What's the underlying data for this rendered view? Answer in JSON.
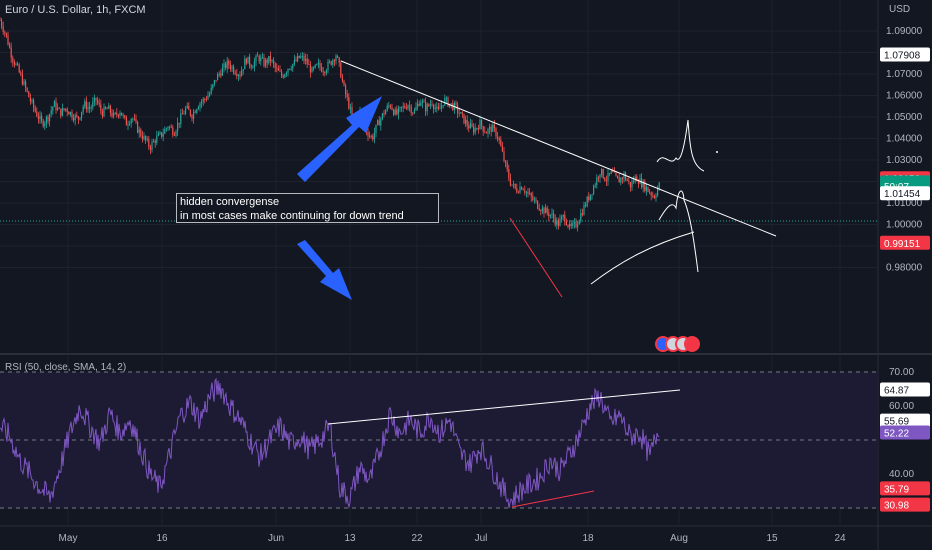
{
  "title": "Euro / U.S. Dollar, 1h, FXCM",
  "currency": "USD",
  "annotation": {
    "line1": "hidden convergense",
    "line2": "in most cases make continuing for down trend"
  },
  "chart_data": [
    {
      "type": "candlestick",
      "title": "Euro / U.S. Dollar, 1h, FXCM",
      "ylabel": "USD",
      "ylim": [
        0.97,
        1.1
      ],
      "yticks": [
        "1.09000",
        "1.08000",
        "1.07000",
        "1.06000",
        "1.05000",
        "1.04000",
        "1.03000",
        "1.02000",
        "1.01000",
        "1.00000",
        "0.99000",
        "0.98000"
      ],
      "ytick_values": [
        1.09,
        1.08,
        1.07,
        1.06,
        1.05,
        1.04,
        1.03,
        1.02,
        1.01,
        1.0,
        0.99,
        0.98
      ],
      "xticks": [
        "May",
        "16",
        "Jun",
        "13",
        "22",
        "Jul",
        "18",
        "Aug",
        "15",
        "24"
      ],
      "price_path": [
        [
          0,
          1.095
        ],
        [
          6,
          1.088
        ],
        [
          12,
          1.078
        ],
        [
          18,
          1.072
        ],
        [
          24,
          1.065
        ],
        [
          30,
          1.058
        ],
        [
          36,
          1.052
        ],
        [
          42,
          1.047
        ],
        [
          48,
          1.05
        ],
        [
          54,
          1.056
        ],
        [
          60,
          1.052
        ],
        [
          66,
          1.054
        ],
        [
          72,
          1.051
        ],
        [
          78,
          1.049
        ],
        [
          84,
          1.056
        ],
        [
          90,
          1.054
        ],
        [
          96,
          1.058
        ],
        [
          102,
          1.052
        ],
        [
          108,
          1.054
        ],
        [
          114,
          1.05
        ],
        [
          120,
          1.053
        ],
        [
          126,
          1.047
        ],
        [
          132,
          1.05
        ],
        [
          138,
          1.044
        ],
        [
          144,
          1.04
        ],
        [
          150,
          1.036
        ],
        [
          156,
          1.04
        ],
        [
          162,
          1.042
        ],
        [
          168,
          1.046
        ],
        [
          174,
          1.043
        ],
        [
          180,
          1.049
        ],
        [
          186,
          1.054
        ],
        [
          192,
          1.051
        ],
        [
          198,
          1.056
        ],
        [
          204,
          1.058
        ],
        [
          210,
          1.061
        ],
        [
          216,
          1.068
        ],
        [
          222,
          1.072
        ],
        [
          228,
          1.075
        ],
        [
          234,
          1.072
        ],
        [
          240,
          1.07
        ],
        [
          246,
          1.077
        ],
        [
          252,
          1.074
        ],
        [
          258,
          1.078
        ],
        [
          264,
          1.075
        ],
        [
          270,
          1.077
        ],
        [
          276,
          1.072
        ],
        [
          282,
          1.069
        ],
        [
          288,
          1.073
        ],
        [
          294,
          1.075
        ],
        [
          300,
          1.078
        ],
        [
          306,
          1.076
        ],
        [
          312,
          1.071
        ],
        [
          318,
          1.074
        ],
        [
          324,
          1.072
        ],
        [
          330,
          1.075
        ],
        [
          336,
          1.079
        ],
        [
          340,
          1.072
        ],
        [
          344,
          1.063
        ],
        [
          348,
          1.057
        ],
        [
          352,
          1.05
        ],
        [
          356,
          1.046
        ],
        [
          360,
          1.052
        ],
        [
          366,
          1.044
        ],
        [
          372,
          1.04
        ],
        [
          378,
          1.047
        ],
        [
          384,
          1.052
        ],
        [
          390,
          1.056
        ],
        [
          396,
          1.051
        ],
        [
          402,
          1.054
        ],
        [
          408,
          1.056
        ],
        [
          414,
          1.052
        ],
        [
          420,
          1.058
        ],
        [
          426,
          1.054
        ],
        [
          432,
          1.057
        ],
        [
          438,
          1.052
        ],
        [
          444,
          1.058
        ],
        [
          450,
          1.056
        ],
        [
          456,
          1.054
        ],
        [
          462,
          1.05
        ],
        [
          468,
          1.046
        ],
        [
          474,
          1.044
        ],
        [
          480,
          1.047
        ],
        [
          486,
          1.043
        ],
        [
          492,
          1.045
        ],
        [
          498,
          1.041
        ],
        [
          504,
          1.03
        ],
        [
          510,
          1.02
        ],
        [
          516,
          1.016
        ],
        [
          522,
          1.018
        ],
        [
          528,
          1.014
        ],
        [
          534,
          1.011
        ],
        [
          540,
          1.008
        ],
        [
          546,
          1.006
        ],
        [
          552,
          1.004
        ],
        [
          558,
          1.0
        ],
        [
          564,
          1.004
        ],
        [
          570,
          0.998
        ],
        [
          576,
          1.0
        ],
        [
          582,
          1.006
        ],
        [
          588,
          1.012
        ],
        [
          594,
          1.018
        ],
        [
          600,
          1.025
        ],
        [
          606,
          1.021
        ],
        [
          612,
          1.024
        ],
        [
          618,
          1.02
        ],
        [
          624,
          1.023
        ],
        [
          630,
          1.018
        ],
        [
          636,
          1.022
        ],
        [
          642,
          1.019
        ],
        [
          648,
          1.016
        ],
        [
          654,
          1.013
        ],
        [
          660,
          1.019
        ]
      ],
      "price_labels": [
        {
          "label": "1.07908",
          "value": 1.07908,
          "bg": "#ffffff",
          "fg": "#131722"
        },
        {
          "label": "1.02153",
          "value": 1.02153,
          "bg": "#f23645",
          "fg": "#ffffff"
        },
        {
          "label": "1.01959",
          "value": 1.01959,
          "bg": "#089981",
          "fg": "#ffffff"
        },
        {
          "label": "50:07",
          "value": 1.0178,
          "bg": "#089981",
          "fg": "#ffffff"
        },
        {
          "label": "1.01454",
          "value": 1.01454,
          "bg": "#ffffff",
          "fg": "#131722"
        },
        {
          "label": "0.99151",
          "value": 0.99151,
          "bg": "#f23645",
          "fg": "#ffffff"
        }
      ]
    },
    {
      "type": "line",
      "title": "RSI (50, close, SMA, 14, 2)",
      "ylim": [
        30,
        72
      ],
      "yticks": [
        "70.00",
        "60.00",
        "40.00"
      ],
      "ytick_values": [
        70,
        60,
        40
      ],
      "levels": [
        70,
        50,
        30
      ],
      "rsi_path": [
        [
          0,
          54
        ],
        [
          10,
          51
        ],
        [
          20,
          44
        ],
        [
          30,
          40
        ],
        [
          40,
          36
        ],
        [
          50,
          33
        ],
        [
          60,
          42
        ],
        [
          70,
          52
        ],
        [
          80,
          60
        ],
        [
          90,
          54
        ],
        [
          100,
          49
        ],
        [
          110,
          58
        ],
        [
          120,
          52
        ],
        [
          130,
          56
        ],
        [
          140,
          48
        ],
        [
          150,
          40
        ],
        [
          160,
          36
        ],
        [
          170,
          46
        ],
        [
          180,
          57
        ],
        [
          190,
          61
        ],
        [
          200,
          56
        ],
        [
          210,
          63
        ],
        [
          220,
          66
        ],
        [
          230,
          60
        ],
        [
          240,
          56
        ],
        [
          250,
          50
        ],
        [
          260,
          45
        ],
        [
          270,
          50
        ],
        [
          280,
          54
        ],
        [
          290,
          49
        ],
        [
          300,
          51
        ],
        [
          310,
          47
        ],
        [
          320,
          50
        ],
        [
          330,
          54
        ],
        [
          340,
          36
        ],
        [
          350,
          33
        ],
        [
          360,
          42
        ],
        [
          370,
          38
        ],
        [
          380,
          47
        ],
        [
          390,
          58
        ],
        [
          400,
          52
        ],
        [
          410,
          56
        ],
        [
          420,
          52
        ],
        [
          430,
          57
        ],
        [
          440,
          52
        ],
        [
          450,
          56
        ],
        [
          460,
          46
        ],
        [
          470,
          43
        ],
        [
          480,
          48
        ],
        [
          490,
          43
        ],
        [
          500,
          37
        ],
        [
          510,
          32
        ],
        [
          520,
          35
        ],
        [
          530,
          37
        ],
        [
          540,
          39
        ],
        [
          550,
          44
        ],
        [
          560,
          41
        ],
        [
          570,
          46
        ],
        [
          580,
          52
        ],
        [
          590,
          60
        ],
        [
          600,
          63
        ],
        [
          610,
          55
        ],
        [
          620,
          57
        ],
        [
          630,
          51
        ],
        [
          640,
          52
        ],
        [
          650,
          45
        ],
        [
          660,
          55
        ]
      ],
      "value_labels": [
        {
          "label": "64.87",
          "value": 64.87,
          "bg": "#ffffff",
          "fg": "#131722"
        },
        {
          "label": "55.69",
          "value": 55.69,
          "bg": "#ffffff",
          "fg": "#131722"
        },
        {
          "label": "52.22",
          "value": 52.22,
          "bg": "#7e57c2",
          "fg": "#ffffff"
        },
        {
          "label": "35.79",
          "value": 35.79,
          "bg": "#f23645",
          "fg": "#ffffff"
        },
        {
          "label": "30.98",
          "value": 30.98,
          "bg": "#f23645",
          "fg": "#ffffff"
        }
      ]
    }
  ],
  "colors": {
    "background": "#131722",
    "up": "#26a69a",
    "down": "#ef5350",
    "rsi_line": "#7e57c2",
    "rsi_band": "#1d1a34",
    "annotation_arrow": "#2962ff",
    "trendline": "#ffffff"
  }
}
